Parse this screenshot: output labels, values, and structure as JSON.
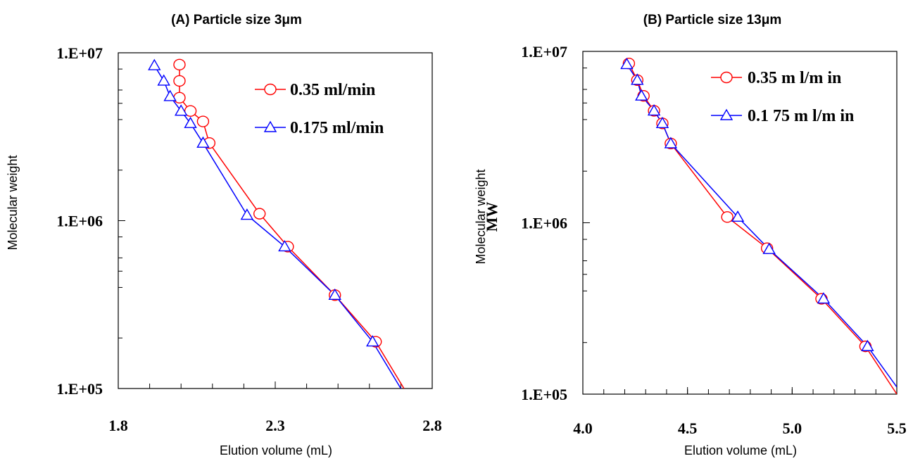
{
  "chart_data": [
    {
      "type": "line",
      "title": "(A) Particle size 3μm",
      "xlabel": "Elution volume (mL)",
      "ylabel": "Molecular weight",
      "y_scale": "log",
      "xlim": [
        1.8,
        2.8
      ],
      "ylim": [
        100000,
        10000000
      ],
      "xticks": [
        1.8,
        2.3,
        2.8
      ],
      "xtick_labels": [
        "1.8",
        "2.3",
        "2.8"
      ],
      "ytick_labels": [
        "1.E+05",
        "1.E+06",
        "1.E+07"
      ],
      "legend_position": "top-right",
      "series": [
        {
          "name": "0.35 ml/min",
          "color": "#ff0000",
          "marker": "circle",
          "x": [
            1.995,
            1.995,
            1.995,
            2.03,
            2.07,
            2.09,
            2.25,
            2.34,
            2.49,
            2.62
          ],
          "y": [
            8500000,
            6800000,
            5400000,
            4500000,
            3900000,
            2900000,
            1100000,
            700000,
            360000,
            190000
          ],
          "line_end": [
            2.71,
            100000
          ]
        },
        {
          "name": "0.175 ml/min",
          "color": "#0000ff",
          "marker": "triangle",
          "x": [
            1.915,
            1.945,
            1.965,
            2.0,
            2.03,
            2.07,
            2.21,
            2.33,
            2.49,
            2.61
          ],
          "y": [
            8400000,
            6800000,
            5500000,
            4500000,
            3800000,
            2900000,
            1080000,
            700000,
            360000,
            190000
          ],
          "line_end": [
            2.7,
            100000
          ]
        }
      ]
    },
    {
      "type": "line",
      "title": "(B) Particle size 13μm",
      "xlabel": "Elution volume (mL)",
      "ylabel": "Molecular weight",
      "y_overlay_label": "MW",
      "y_scale": "log",
      "xlim": [
        4.0,
        5.5
      ],
      "ylim": [
        100000,
        10000000
      ],
      "xticks": [
        4.0,
        4.5,
        5.0,
        5.5
      ],
      "xtick_labels": [
        "4.0",
        "4.5",
        "5.0",
        "5.5"
      ],
      "ytick_labels": [
        "1.E+05",
        "1.E+06",
        "1.E+07"
      ],
      "legend_position": "top-right",
      "series": [
        {
          "name": "0.35 m l/m in",
          "color": "#ff0000",
          "marker": "circle",
          "x": [
            4.22,
            4.26,
            4.29,
            4.34,
            4.38,
            4.42,
            4.69,
            4.88,
            5.14,
            5.35
          ],
          "y": [
            8500000,
            6800000,
            5500000,
            4500000,
            3800000,
            2900000,
            1080000,
            710000,
            360000,
            190000
          ],
          "line_end": [
            5.5,
            100000
          ]
        },
        {
          "name": "0.1 75 m l/m in",
          "color": "#0000ff",
          "marker": "triangle",
          "x": [
            4.21,
            4.26,
            4.28,
            4.34,
            4.38,
            4.42,
            4.74,
            4.89,
            5.15,
            5.36
          ],
          "y": [
            8400000,
            6800000,
            5500000,
            4500000,
            3800000,
            2900000,
            1080000,
            700000,
            360000,
            190000
          ],
          "line_end": [
            5.5,
            110000
          ]
        }
      ]
    }
  ]
}
